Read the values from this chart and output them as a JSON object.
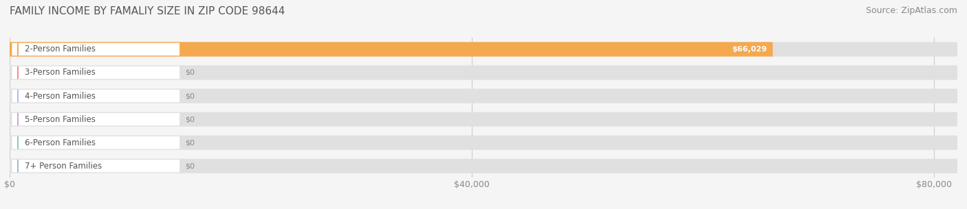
{
  "title": "FAMILY INCOME BY FAMALIY SIZE IN ZIP CODE 98644",
  "source": "Source: ZipAtlas.com",
  "categories": [
    "2-Person Families",
    "3-Person Families",
    "4-Person Families",
    "5-Person Families",
    "6-Person Families",
    "7+ Person Families"
  ],
  "values": [
    66029,
    0,
    0,
    0,
    0,
    0
  ],
  "bar_colors": [
    "#F5A94E",
    "#F0908A",
    "#A8C4E0",
    "#C9A8D4",
    "#7ECEC4",
    "#A8B8E0"
  ],
  "label_colors": [
    "#F5A94E",
    "#F0908A",
    "#A8C4E0",
    "#C9A8D4",
    "#7ECEC4",
    "#A8B8E0"
  ],
  "xlim": [
    0,
    82000
  ],
  "xticks": [
    0,
    40000,
    80000
  ],
  "xtick_labels": [
    "$0",
    "$40,000",
    "$80,000"
  ],
  "background_color": "#f5f5f5",
  "bar_bg_color": "#e8e8e8",
  "value_label_2person": "$66,029",
  "title_fontsize": 11,
  "source_fontsize": 9,
  "tick_fontsize": 9,
  "bar_label_fontsize": 8.5,
  "value_fontsize": 8
}
